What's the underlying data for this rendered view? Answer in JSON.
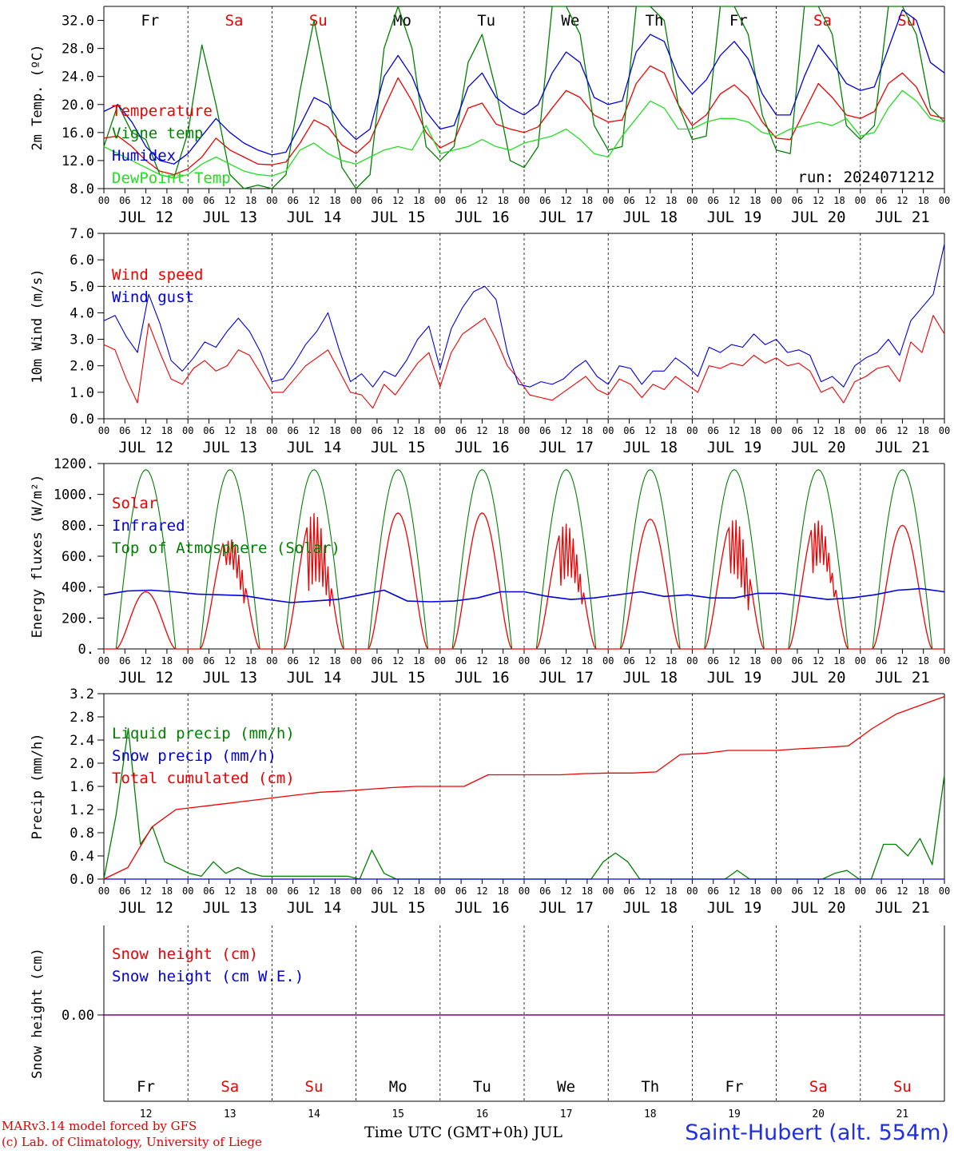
{
  "footer": {
    "credit_line1": "MARv3.14 model forced by GFS",
    "credit_line2": "(c) Lab. of Climatology, University of Liege",
    "station": "Saint-Hubert (alt. 554m)",
    "time_axis": "Time UTC (GMT+0h) JUL"
  },
  "colors": {
    "red": "#ee0000",
    "green": "#008000",
    "blue": "#0000dd",
    "lightgreen": "#22dd22",
    "purple": "#800080"
  },
  "chart_data": [
    {
      "id": "temperature",
      "type": "line",
      "ylabel": "2m Temp. (ºC)",
      "ylim": [
        8.0,
        34.0
      ],
      "yticks": [
        "8.0",
        "12.0",
        "16.0",
        "20.0",
        "24.0",
        "28.0",
        "32.0"
      ],
      "xticks_hours": [
        "00",
        "06",
        "12",
        "18"
      ],
      "day_labels": [
        "JUL 12",
        "JUL 13",
        "JUL 14",
        "JUL 15",
        "JUL 16",
        "JUL 17",
        "JUL 18",
        "JUL 19",
        "JUL 20",
        "JUL 21"
      ],
      "weekday_labels": [
        "Fr",
        "Sa",
        "Su",
        "Mo",
        "Tu",
        "We",
        "Th",
        "Fr",
        "Sa",
        "Su"
      ],
      "weekday_colors": [
        "black",
        "red",
        "red",
        "black",
        "black",
        "black",
        "black",
        "black",
        "red",
        "red"
      ],
      "annotation": "run: 2024071212",
      "x_hours_step": 6,
      "series": [
        {
          "name": "Temperature",
          "color": "red",
          "values": [
            15.2,
            15.5,
            14.0,
            12.0,
            10.5,
            10.0,
            10.8,
            12.5,
            15.2,
            13.5,
            12.5,
            11.5,
            11.4,
            11.8,
            14.5,
            17.8,
            16.8,
            14.2,
            13.0,
            14.8,
            19.5,
            23.8,
            20.5,
            16.0,
            13.8,
            14.8,
            19.5,
            20.2,
            17.2,
            16.5,
            16.0,
            16.8,
            19.5,
            22.0,
            21.0,
            18.5,
            17.5,
            17.8,
            23.0,
            25.5,
            24.5,
            20.0,
            17.0,
            18.5,
            21.5,
            22.8,
            21.0,
            17.5,
            15.2,
            15.0,
            19.0,
            23.0,
            21.0,
            18.5,
            18.0,
            19.0,
            23.0,
            24.5,
            22.5,
            18.5,
            18.0
          ]
        },
        {
          "name": "Vigne temp",
          "color": "green",
          "values": [
            14.0,
            20.0,
            16.0,
            15.0,
            10.0,
            9.5,
            16.0,
            28.5,
            20.0,
            10.0,
            8.0,
            8.5,
            8.0,
            10.0,
            22.0,
            32.0,
            22.0,
            11.0,
            8.0,
            10.0,
            28.0,
            34.0,
            28.0,
            14.0,
            12.0,
            14.0,
            26.0,
            30.0,
            22.0,
            12.0,
            11.0,
            14.0,
            34.0,
            34.0,
            30.0,
            17.0,
            13.5,
            14.0,
            34.0,
            34.0,
            32.0,
            20.0,
            15.0,
            15.5,
            34.0,
            34.0,
            30.0,
            18.5,
            13.5,
            13.0,
            34.0,
            34.0,
            30.0,
            17.0,
            15.0,
            17.0,
            34.0,
            34.0,
            30.0,
            19.5,
            17.5
          ]
        },
        {
          "name": "Humidex",
          "color": "blue",
          "values": [
            19.0,
            20.0,
            17.5,
            14.0,
            12.0,
            11.5,
            13.0,
            15.5,
            18.0,
            16.0,
            14.5,
            13.5,
            12.8,
            13.2,
            17.0,
            21.0,
            20.0,
            17.0,
            15.0,
            16.5,
            24.0,
            27.0,
            24.0,
            19.0,
            16.5,
            17.0,
            22.5,
            24.5,
            21.0,
            19.5,
            18.5,
            20.0,
            24.5,
            27.5,
            26.0,
            21.0,
            20.0,
            20.5,
            27.5,
            30.0,
            29.0,
            24.0,
            21.5,
            23.5,
            27.0,
            29.0,
            26.5,
            21.5,
            18.5,
            18.5,
            24.0,
            28.5,
            26.0,
            23.0,
            22.0,
            22.5,
            28.0,
            33.5,
            32.0,
            26.0,
            24.5
          ]
        },
        {
          "name": "DewPoint Temp",
          "color": "lightgreen",
          "values": [
            14.0,
            13.0,
            12.0,
            11.0,
            10.0,
            9.5,
            10.0,
            11.5,
            12.5,
            11.5,
            10.5,
            10.0,
            9.8,
            10.5,
            13.5,
            14.5,
            13.0,
            12.0,
            11.5,
            12.5,
            13.5,
            14.0,
            13.5,
            17.0,
            13.0,
            13.5,
            14.0,
            15.0,
            14.0,
            13.5,
            14.5,
            15.0,
            15.5,
            16.5,
            15.0,
            13.0,
            12.5,
            15.5,
            18.0,
            20.5,
            19.5,
            16.5,
            16.5,
            17.5,
            18.0,
            18.0,
            17.5,
            16.0,
            15.5,
            16.5,
            17.0,
            17.5,
            17.0,
            18.0,
            15.5,
            16.0,
            19.5,
            22.0,
            20.5,
            18.0,
            17.5
          ]
        }
      ]
    },
    {
      "id": "wind",
      "type": "line",
      "ylabel": "10m Wind (m/s)",
      "ylim": [
        0.0,
        7.0
      ],
      "yticks": [
        "0.0",
        "1.0",
        "2.0",
        "3.0",
        "4.0",
        "5.0",
        "6.0",
        "7.0"
      ],
      "reference_line": 5.0,
      "day_labels": [
        "JUL 12",
        "JUL 13",
        "JUL 14",
        "JUL 15",
        "JUL 16",
        "JUL 17",
        "JUL 18",
        "JUL 19",
        "JUL 20",
        "JUL 21"
      ],
      "series": [
        {
          "name": "Wind speed",
          "color": "red",
          "values": [
            2.8,
            2.6,
            1.5,
            0.6,
            3.6,
            2.5,
            1.5,
            1.3,
            1.9,
            2.2,
            1.8,
            2.0,
            2.6,
            2.4,
            1.7,
            1.0,
            1.0,
            1.5,
            2.0,
            2.3,
            2.6,
            1.8,
            1.0,
            0.9,
            0.4,
            1.3,
            0.9,
            1.5,
            2.1,
            2.5,
            1.2,
            2.5,
            3.2,
            3.5,
            3.8,
            3.0,
            2.0,
            1.5,
            0.9,
            0.8,
            0.7,
            1.0,
            1.3,
            1.6,
            1.1,
            0.9,
            1.5,
            1.3,
            0.8,
            1.3,
            1.1,
            1.6,
            1.3,
            1.0,
            2.0,
            1.9,
            2.1,
            2.0,
            2.4,
            2.1,
            2.3,
            2.0,
            2.1,
            1.8,
            1.0,
            1.2,
            0.6,
            1.4,
            1.6,
            1.9,
            2.0,
            1.4,
            2.9,
            2.5,
            3.9,
            3.2
          ]
        },
        {
          "name": "Wind gust",
          "color": "blue",
          "values": [
            3.7,
            3.9,
            3.1,
            2.5,
            4.7,
            3.6,
            2.2,
            1.8,
            2.3,
            2.9,
            2.7,
            3.3,
            3.8,
            3.3,
            2.5,
            1.4,
            1.5,
            2.1,
            2.8,
            3.3,
            4.0,
            2.6,
            1.4,
            1.7,
            1.2,
            1.8,
            1.6,
            2.2,
            3.0,
            3.5,
            1.9,
            3.4,
            4.2,
            4.8,
            5.0,
            4.5,
            2.5,
            1.3,
            1.2,
            1.4,
            1.3,
            1.5,
            1.9,
            2.2,
            1.6,
            1.3,
            2.0,
            1.9,
            1.3,
            1.8,
            1.8,
            2.3,
            2.0,
            1.6,
            2.7,
            2.5,
            2.8,
            2.7,
            3.2,
            2.8,
            3.0,
            2.5,
            2.6,
            2.4,
            1.4,
            1.6,
            1.2,
            2.0,
            2.3,
            2.5,
            3.0,
            2.4,
            3.7,
            4.2,
            4.7,
            6.6
          ]
        }
      ]
    },
    {
      "id": "energy",
      "type": "line",
      "ylabel": "Energy fluxes (W/m²)",
      "ylim": [
        0,
        1200
      ],
      "yticks": [
        "0.",
        "200.",
        "400.",
        "600.",
        "800.",
        "1000.",
        "1200."
      ],
      "day_labels": [
        "JUL 12",
        "JUL 13",
        "JUL 14",
        "JUL 15",
        "JUL 16",
        "JUL 17",
        "JUL 18",
        "JUL 19",
        "JUL 20",
        "JUL 21"
      ],
      "solar_day_peaks": [
        370,
        760,
        880,
        880,
        880,
        820,
        840,
        850,
        860,
        800
      ],
      "toa_peak": 1160,
      "sunrise_hour": 3.5,
      "sunset_hour": 20.5,
      "series": [
        {
          "name": "Solar",
          "color": "red"
        },
        {
          "name": "Infrared",
          "color": "blue",
          "values": [
            350,
            375,
            380,
            370,
            355,
            350,
            345,
            320,
            300,
            310,
            320,
            350,
            380,
            310,
            305,
            310,
            330,
            370,
            370,
            340,
            320,
            330,
            350,
            370,
            340,
            350,
            330,
            330,
            360,
            360,
            340,
            320,
            330,
            350,
            380,
            390,
            370
          ]
        },
        {
          "name": "Top of Atmosphere (Solar)",
          "color": "green"
        }
      ]
    },
    {
      "id": "precip",
      "type": "line",
      "ylabel": "Precip (mm/h)",
      "ylim": [
        0.0,
        3.2
      ],
      "yticks": [
        "0.0",
        "0.4",
        "0.8",
        "1.2",
        "1.6",
        "2.0",
        "2.4",
        "2.8",
        "3.2"
      ],
      "day_labels": [
        "JUL 12",
        "JUL 13",
        "JUL 14",
        "JUL 15",
        "JUL 16",
        "JUL 17",
        "JUL 18",
        "JUL 19",
        "JUL 20",
        "JUL 21"
      ],
      "series": [
        {
          "name": "Liquid precip (mm/h)",
          "color": "green",
          "values": [
            0.0,
            1.1,
            2.6,
            0.6,
            0.9,
            0.3,
            0.2,
            0.1,
            0.05,
            0.3,
            0.1,
            0.2,
            0.1,
            0.05,
            0.05,
            0.05,
            0.05,
            0.05,
            0.05,
            0.05,
            0.05,
            0.0,
            0.5,
            0.1,
            0.0,
            0.0,
            0.0,
            0.0,
            0.0,
            0.0,
            0.0,
            0.0,
            0.0,
            0.0,
            0.0,
            0.0,
            0.0,
            0.0,
            0.0,
            0.0,
            0.0,
            0.3,
            0.45,
            0.3,
            0.0,
            0.0,
            0.0,
            0.0,
            0.0,
            0.0,
            0.0,
            0.0,
            0.15,
            0.0,
            0.0,
            0.0,
            0.0,
            0.0,
            0.0,
            0.0,
            0.1,
            0.15,
            0.0,
            0.0,
            0.6,
            0.6,
            0.4,
            0.7,
            0.25,
            1.8
          ]
        },
        {
          "name": "Snow precip (mm/h)",
          "color": "blue",
          "values": [
            0,
            0
          ]
        },
        {
          "name": "Total cumulated (cm)",
          "color": "red",
          "values": [
            0.0,
            0.2,
            0.9,
            1.2,
            1.25,
            1.3,
            1.35,
            1.4,
            1.45,
            1.5,
            1.52,
            1.55,
            1.58,
            1.6,
            1.6,
            1.6,
            1.8,
            1.8,
            1.8,
            1.8,
            1.82,
            1.83,
            1.83,
            1.85,
            2.15,
            2.17,
            2.22,
            2.22,
            2.22,
            2.25,
            2.27,
            2.3,
            2.6,
            2.85,
            3.0,
            3.15
          ]
        }
      ]
    },
    {
      "id": "snow",
      "type": "line",
      "ylabel": "Snow height (cm)",
      "yticks": [
        "0.00"
      ],
      "bottom_dates": [
        "12",
        "13",
        "14",
        "15",
        "16",
        "17",
        "18",
        "19",
        "20",
        "21"
      ],
      "weekday_labels": [
        "Fr",
        "Sa",
        "Su",
        "Mo",
        "Tu",
        "We",
        "Th",
        "Fr",
        "Sa",
        "Su"
      ],
      "weekday_colors": [
        "black",
        "red",
        "red",
        "black",
        "black",
        "black",
        "black",
        "black",
        "red",
        "red"
      ],
      "series": [
        {
          "name": "Snow height (cm)",
          "color": "red",
          "values": [
            0,
            0
          ]
        },
        {
          "name": "Snow height (cm W.E.)",
          "color": "blue",
          "values": [
            0,
            0
          ]
        }
      ]
    }
  ]
}
